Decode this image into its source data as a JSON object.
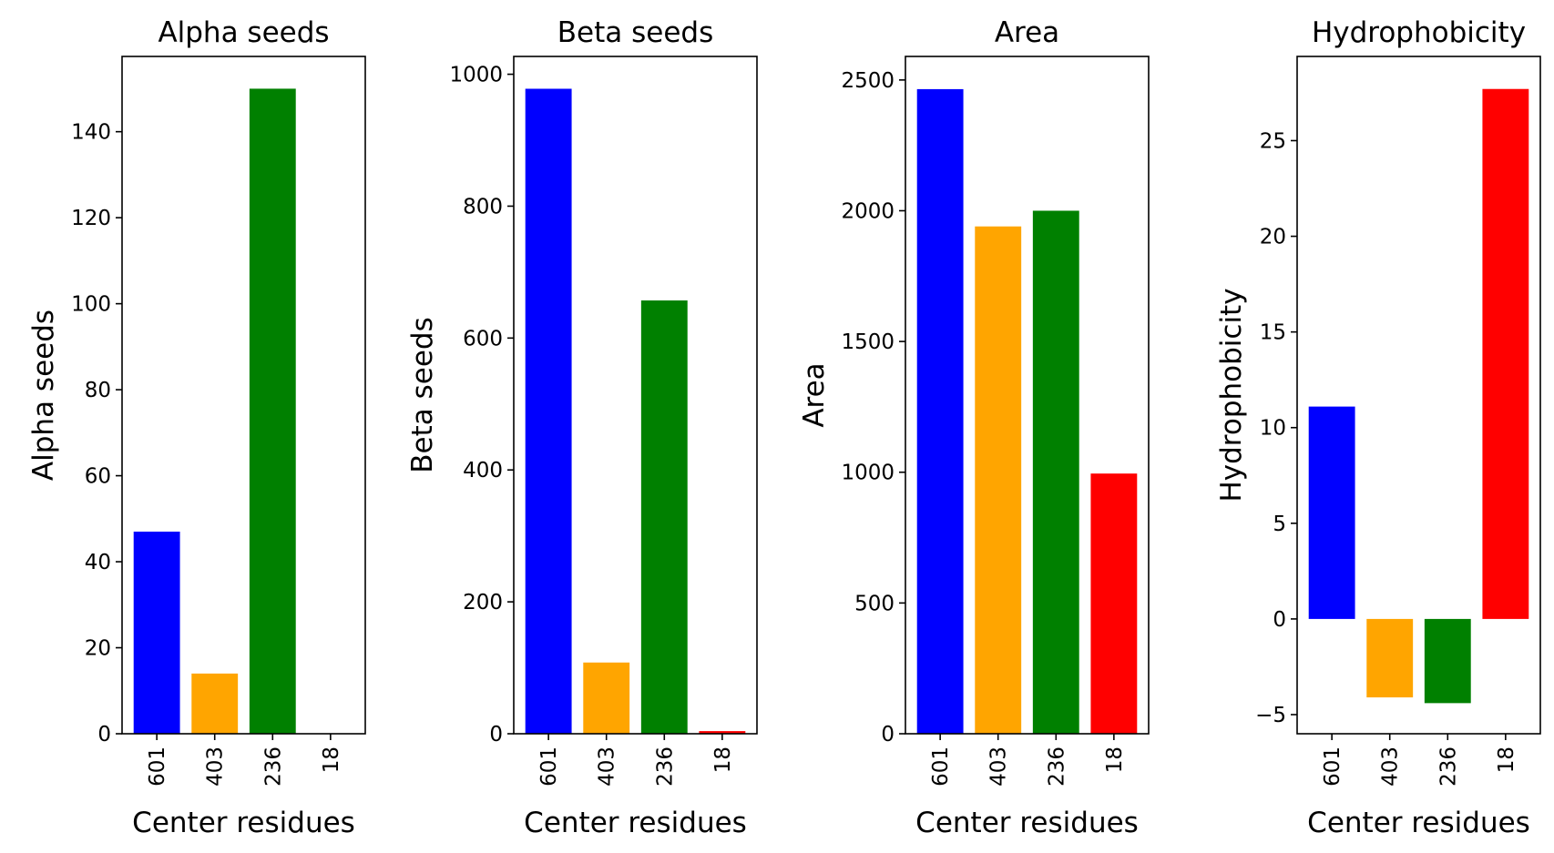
{
  "chart_data": [
    {
      "type": "bar",
      "title": "Alpha seeds",
      "xlabel": "Center residues",
      "ylabel": "Alpha seeds",
      "categories": [
        "601",
        "403",
        "236",
        "18"
      ],
      "values": [
        47,
        14,
        150,
        0
      ],
      "colors": [
        "#0000ff",
        "#ffa500",
        "#008000",
        "#ff0000"
      ],
      "ylim": [
        0,
        157.5
      ],
      "yticks": [
        0,
        20,
        40,
        60,
        80,
        100,
        120,
        140
      ],
      "ytick_labels": [
        "0",
        "20",
        "40",
        "60",
        "80",
        "100",
        "120",
        "140"
      ],
      "grid": false
    },
    {
      "type": "bar",
      "title": "Beta seeds",
      "xlabel": "Center residues",
      "ylabel": "Beta seeds",
      "categories": [
        "601",
        "403",
        "236",
        "18"
      ],
      "values": [
        978,
        108,
        657,
        4
      ],
      "colors": [
        "#0000ff",
        "#ffa500",
        "#008000",
        "#ff0000"
      ],
      "ylim": [
        0,
        1027
      ],
      "yticks": [
        0,
        200,
        400,
        600,
        800,
        1000
      ],
      "ytick_labels": [
        "0",
        "200",
        "400",
        "600",
        "800",
        "1000"
      ],
      "grid": false
    },
    {
      "type": "bar",
      "title": "Area",
      "xlabel": "Center residues",
      "ylabel": "Area",
      "categories": [
        "601",
        "403",
        "236",
        "18"
      ],
      "values": [
        2465,
        1940,
        2000,
        995
      ],
      "colors": [
        "#0000ff",
        "#ffa500",
        "#008000",
        "#ff0000"
      ],
      "ylim": [
        0,
        2590
      ],
      "yticks": [
        0,
        500,
        1000,
        1500,
        2000,
        2500
      ],
      "ytick_labels": [
        "0",
        "500",
        "1000",
        "1500",
        "2000",
        "2500"
      ],
      "grid": false
    },
    {
      "type": "bar",
      "title": "Hydrophobicity",
      "xlabel": "Center residues",
      "ylabel": "Hydrophobicity",
      "categories": [
        "601",
        "403",
        "236",
        "18"
      ],
      "values": [
        11.1,
        -4.1,
        -4.4,
        27.7
      ],
      "colors": [
        "#0000ff",
        "#ffa500",
        "#008000",
        "#ff0000"
      ],
      "ylim": [
        -6.0,
        29.4
      ],
      "yticks": [
        -5,
        0,
        5,
        10,
        15,
        20,
        25
      ],
      "ytick_labels": [
        "−5",
        "0",
        "5",
        "10",
        "15",
        "20",
        "25"
      ],
      "grid": false
    }
  ]
}
